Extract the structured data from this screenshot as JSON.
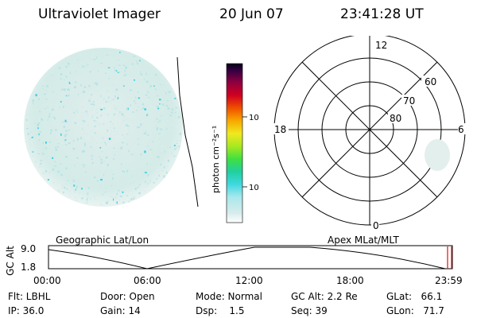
{
  "header": {
    "title": "Ultraviolet Imager",
    "date": "20 Jun 07",
    "time": "23:41:28 UT"
  },
  "colorbar": {
    "unit_label": "photon cm⁻²s⁻¹",
    "ticks": [
      "100",
      "10"
    ]
  },
  "polar": {
    "mlt_labels": [
      "12",
      "18",
      "6",
      "0"
    ],
    "lat_labels": [
      "60",
      "70",
      "80"
    ]
  },
  "map_labels": {
    "left": "Geographic Lat/Lon",
    "right": "Apex MLat/MLT"
  },
  "timeline": {
    "y_label": "GC Alt",
    "y_ticks": [
      "9.0",
      "1.8"
    ],
    "x_ticks": [
      "00:00",
      "06:00",
      "12:00",
      "18:00",
      "23:59"
    ]
  },
  "status": {
    "flt": "Flt: LBHL",
    "ip": "IP: 36.0",
    "door": "Door: Open",
    "gain": "Gain: 14",
    "mode": "Mode: Normal",
    "dsp": "Dsp:    1.5",
    "gc_alt": "GC Alt: 2.2 Re",
    "seq": "Seq: 39",
    "glat": "GLat:   66.1",
    "glon": "GLon:   71.7"
  },
  "colors": {
    "emission_light": "#d8ece8",
    "emission_mid": "#b6e4e6",
    "emission_bright": "#3ccfe0",
    "marker": "#e02020"
  }
}
